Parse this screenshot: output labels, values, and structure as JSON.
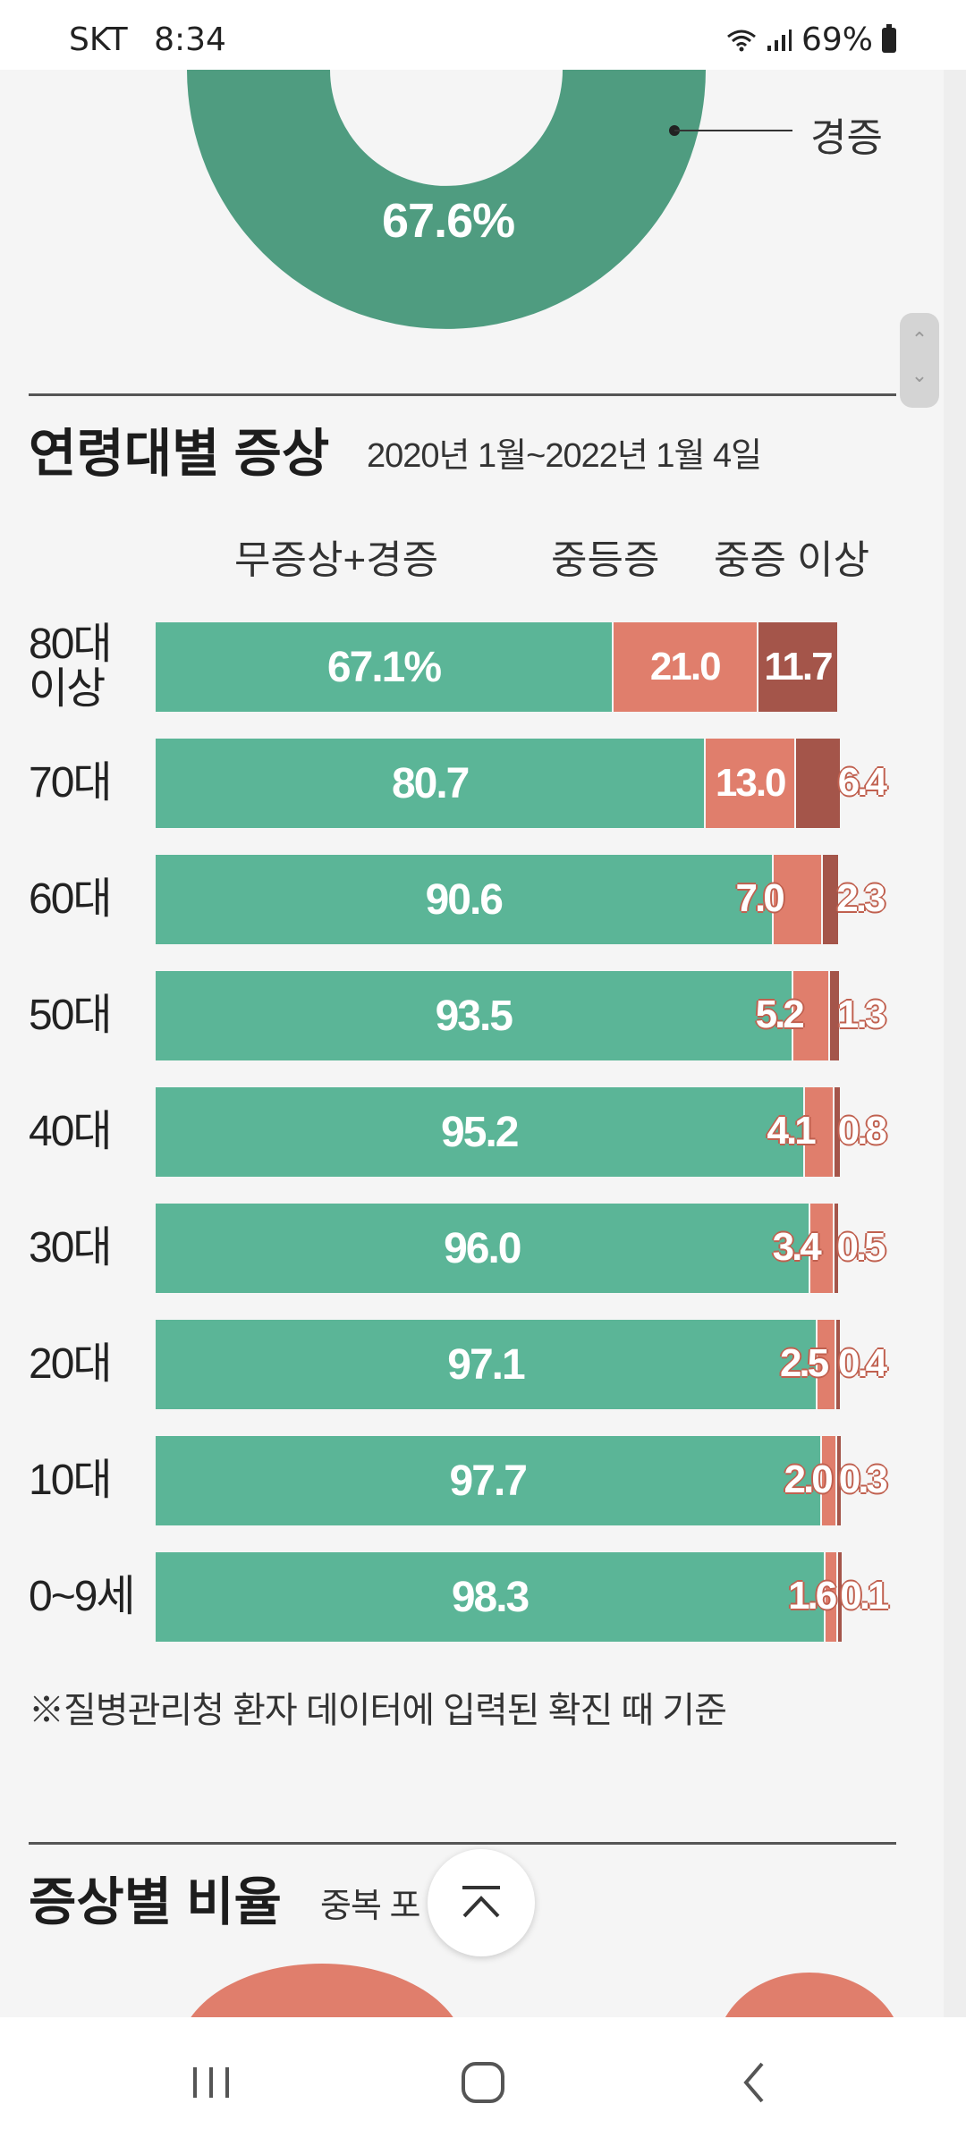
{
  "status_bar": {
    "carrier": "SKT",
    "time": "8:34",
    "battery": "69%"
  },
  "donut": {
    "percent_label": "67.6%",
    "category_label": "경증"
  },
  "age_section": {
    "title": "연령대별 증상",
    "subtitle": "2020년 1월~2022년 1월 4일",
    "footnote": "※질병관리청 환자 데이터에 입력된 확진 때 기준"
  },
  "next_section": {
    "title": "증상별 비율",
    "subtitle": "중복 포"
  },
  "colors": {
    "mild": "#5bb597",
    "moderate": "#e07e6c",
    "severe": "#a4554a",
    "donut": "#4f9c80"
  },
  "chart_data": {
    "type": "bar",
    "orientation": "horizontal",
    "stacked": true,
    "xlim": [
      0,
      100
    ],
    "categories": [
      "80대\n이상",
      "70대",
      "60대",
      "50대",
      "40대",
      "30대",
      "20대",
      "10대",
      "0~9세"
    ],
    "series": [
      {
        "name": "무증상+경증",
        "values": [
          67.1,
          80.7,
          90.6,
          93.5,
          95.2,
          96.0,
          97.1,
          97.7,
          98.3
        ],
        "labels": [
          "67.1%",
          "80.7",
          "90.6",
          "93.5",
          "95.2",
          "96.0",
          "97.1",
          "97.7",
          "98.3"
        ]
      },
      {
        "name": "중등증",
        "values": [
          21.0,
          13.0,
          7.0,
          5.2,
          4.1,
          3.4,
          2.5,
          2.0,
          1.6
        ],
        "labels": [
          "21.0",
          "13.0",
          "7.0",
          "5.2",
          "4.1",
          "3.4",
          "2.5",
          "2.0",
          "1.6"
        ]
      },
      {
        "name": "중증 이상",
        "values": [
          11.7,
          6.4,
          2.3,
          1.3,
          0.8,
          0.5,
          0.4,
          0.3,
          0.1
        ],
        "labels": [
          "11.7",
          "6.4",
          "2.3",
          "1.3",
          "0.8",
          "0.5",
          "0.4",
          "0.3",
          "0.1"
        ]
      }
    ]
  }
}
